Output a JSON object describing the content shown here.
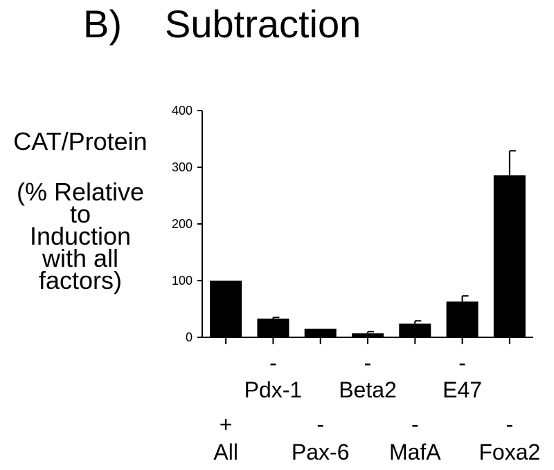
{
  "header": {
    "panel_label": "B)",
    "title": "Subtraction"
  },
  "ylabel": {
    "line1": "CAT/Protein",
    "line2": "(% Relative",
    "line3": "to",
    "line4": "Induction",
    "line5": "with all",
    "line6": "factors)"
  },
  "chart_data": {
    "type": "bar",
    "title": "Subtraction",
    "ylabel": "CAT/Protein (% Relative to Induction with all factors)",
    "ylim": [
      0,
      400
    ],
    "yticks": [
      0,
      100,
      200,
      300,
      400
    ],
    "grid": false,
    "categories": [
      {
        "sign": "+",
        "label": "All",
        "row": 2
      },
      {
        "sign": "-",
        "label": "Pdx-1",
        "row": 1
      },
      {
        "sign": "-",
        "label": "Pax-6",
        "row": 2
      },
      {
        "sign": "-",
        "label": "Beta2",
        "row": 1
      },
      {
        "sign": "-",
        "label": "MafA",
        "row": 2
      },
      {
        "sign": "-",
        "label": "E47",
        "row": 1
      },
      {
        "sign": "-",
        "label": "Foxa2",
        "row": 2
      }
    ],
    "values": [
      100,
      33,
      15,
      7,
      24,
      63,
      286
    ],
    "error": [
      0,
      2,
      0,
      3,
      5,
      10,
      43
    ],
    "bar_color": "#000000"
  }
}
